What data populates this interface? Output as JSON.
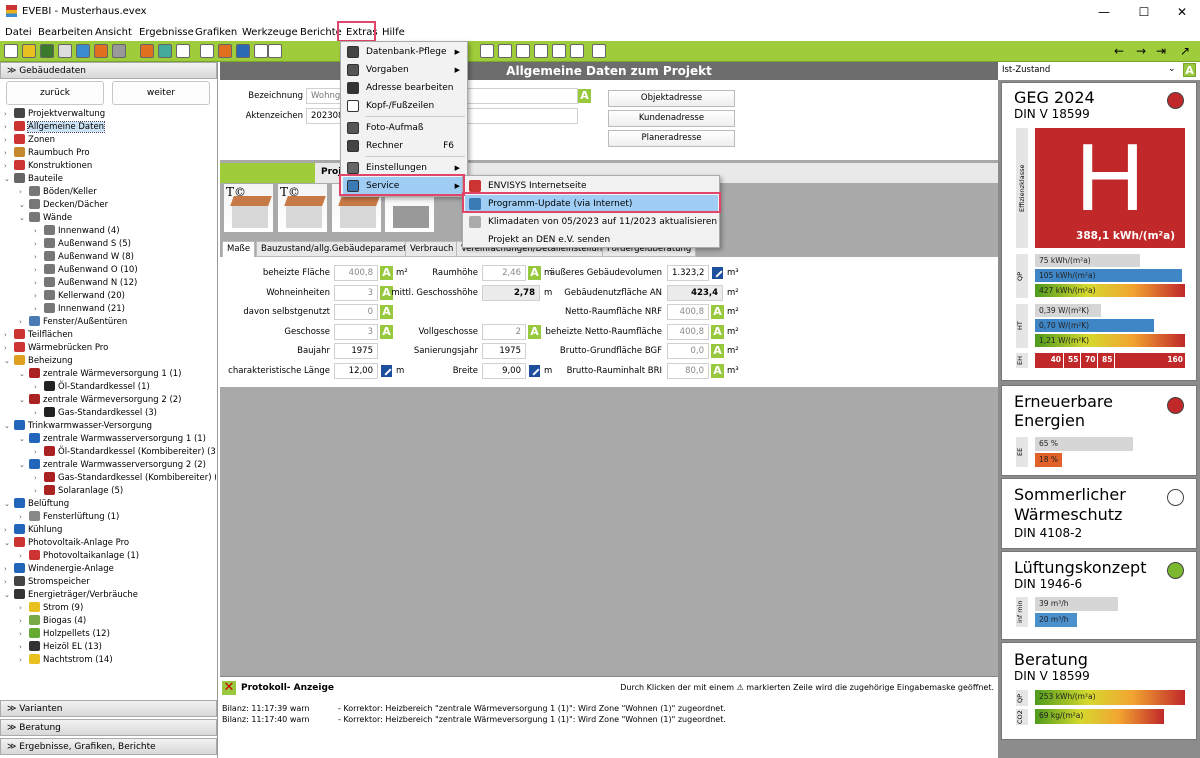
{
  "window": {
    "title": "EVEBI - Musterhaus.evex",
    "min": "—",
    "max": "☐",
    "close": "✕"
  },
  "menubar": [
    "Datei",
    "Bearbeiten",
    "Ansicht",
    "Ergebnisse",
    "Grafiken",
    "Werkzeuge",
    "Berichte",
    "Extras",
    "Hilfe"
  ],
  "left": {
    "header": "Gebäudedaten",
    "back": "zurück",
    "next": "weiter",
    "tree": [
      {
        "l": 0,
        "t": "Projektverwaltung",
        "c": "#444"
      },
      {
        "l": 0,
        "t": "Allgemeine Daten",
        "c": "#c33",
        "sel": true
      },
      {
        "l": 0,
        "t": "Zonen",
        "c": "#c33"
      },
      {
        "l": 0,
        "t": "Raumbuch Pro",
        "c": "#c58a2e"
      },
      {
        "l": 0,
        "t": "Konstruktionen",
        "c": "#c33"
      },
      {
        "l": 0,
        "t": "Bauteile",
        "c": "#666"
      },
      {
        "l": 1,
        "t": "Böden/Keller",
        "c": "#777"
      },
      {
        "l": 1,
        "t": "Decken/Dächer",
        "c": "#777"
      },
      {
        "l": 1,
        "t": "Wände",
        "c": "#777"
      },
      {
        "l": 2,
        "t": "Innenwand (4)",
        "c": "#777"
      },
      {
        "l": 2,
        "t": "Außenwand S (5)",
        "c": "#777"
      },
      {
        "l": 2,
        "t": "Außenwand W (8)",
        "c": "#777"
      },
      {
        "l": 2,
        "t": "Außenwand O (10)",
        "c": "#777"
      },
      {
        "l": 2,
        "t": "Außenwand N (12)",
        "c": "#777"
      },
      {
        "l": 2,
        "t": "Kellerwand (20)",
        "c": "#777"
      },
      {
        "l": 2,
        "t": "Innenwand (21)",
        "c": "#777"
      },
      {
        "l": 1,
        "t": "Fenster/Außentüren",
        "c": "#4a7ab5"
      },
      {
        "l": 0,
        "t": "Teilflächen",
        "c": "#c33"
      },
      {
        "l": 0,
        "t": "Wärmebrücken Pro",
        "c": "#c33"
      },
      {
        "l": 0,
        "t": "Beheizung",
        "c": "#e0a020"
      },
      {
        "l": 1,
        "t": "zentrale Wärmeversorgung 1 (1)",
        "c": "#a22"
      },
      {
        "l": 2,
        "t": "Öl-Standardkessel (1)",
        "c": "#222"
      },
      {
        "l": 1,
        "t": "zentrale Wärmeversorgung 2 (2)",
        "c": "#a22"
      },
      {
        "l": 2,
        "t": "Gas-Standardkessel (3)",
        "c": "#222"
      },
      {
        "l": 0,
        "t": "Trinkwarmwasser-Versorgung",
        "c": "#2266bb"
      },
      {
        "l": 1,
        "t": "zentrale Warmwasserversorgung 1 (1)",
        "c": "#2266bb"
      },
      {
        "l": 2,
        "t": "Öl-Standardkessel (Kombibereiter) (3)",
        "c": "#a22"
      },
      {
        "l": 1,
        "t": "zentrale Warmwasserversorgung 2 (2)",
        "c": "#2266bb"
      },
      {
        "l": 2,
        "t": "Gas-Standardkessel (Kombibereiter) (4)",
        "c": "#a22"
      },
      {
        "l": 2,
        "t": "Solaranlage (5)",
        "c": "#a22"
      },
      {
        "l": 0,
        "t": "Belüftung",
        "c": "#2266bb"
      },
      {
        "l": 1,
        "t": "Fensterlüftung (1)",
        "c": "#888"
      },
      {
        "l": 0,
        "t": "Kühlung",
        "c": "#2266bb"
      },
      {
        "l": 0,
        "t": "Photovoltaik-Anlage Pro",
        "c": "#c33"
      },
      {
        "l": 1,
        "t": "Photovoltaikanlage (1)",
        "c": "#c33"
      },
      {
        "l": 0,
        "t": "Windenergie-Anlage",
        "c": "#2266bb"
      },
      {
        "l": 0,
        "t": "Stromspeicher",
        "c": "#444"
      },
      {
        "l": 0,
        "t": "Energieträger/Verbräuche",
        "c": "#333"
      },
      {
        "l": 1,
        "t": "Strom (9)",
        "c": "#e8c020"
      },
      {
        "l": 1,
        "t": "Biogas (4)",
        "c": "#7a4"
      },
      {
        "l": 1,
        "t": "Holzpellets (12)",
        "c": "#6a3"
      },
      {
        "l": 1,
        "t": "Heizöl EL (13)",
        "c": "#333"
      },
      {
        "l": 1,
        "t": "Nachtstrom (14)",
        "c": "#e8c020"
      }
    ],
    "sections": [
      "Varianten",
      "Beratung",
      "Ergebnisse, Grafiken, Berichte"
    ]
  },
  "center": {
    "title": "Allgemeine Daten zum Projekt",
    "bezeichnung_label": "Bezeichnung",
    "bezeichnung_value": "Wohngebäude",
    "aktenzeichen_label": "Aktenzeichen",
    "aktenzeichen_value": "202308",
    "buttons": [
      "Objektadresse",
      "Kundenadresse",
      "Planeradresse"
    ],
    "subtoolbar_label": "Projekt",
    "tabs": [
      "Maße",
      "Bauzustand/allg.Gebäudeparameter",
      "Verbrauch",
      "Vereinfachungen/Detaileinstellungen",
      "Fördergeldberatung"
    ],
    "fields": [
      [
        {
          "label": "beheizte Fläche",
          "value": "400,8",
          "badge": "A",
          "unit": "m²",
          "grey": true
        },
        {
          "label": "Raumhöhe",
          "value": "2,46",
          "badge": "A",
          "unit": "m",
          "grey": true
        },
        {
          "label": "äußeres Gebäudevolumen",
          "value": "1.323,2",
          "badge": "P",
          "unit": "m³"
        }
      ],
      [
        {
          "label": "Wohneinheiten",
          "value": "3",
          "badge": "A",
          "unit": "",
          "grey": true
        },
        {
          "label": "mittl. Geschosshöhe",
          "value": "2,78",
          "badge": "",
          "unit": "m",
          "bold": true
        },
        {
          "label": "Gebäudenutzfläche AN",
          "value": "423,4",
          "badge": "",
          "unit": "m²",
          "bold": true
        }
      ],
      [
        {
          "label": "davon selbstgenutzt",
          "value": "0",
          "badge": "A",
          "unit": "",
          "grey": true
        },
        null,
        {
          "label": "Netto-Raumfläche NRF",
          "value": "400,8",
          "badge": "A",
          "unit": "m²",
          "grey": true
        }
      ],
      [
        {
          "label": "Geschosse",
          "value": "3",
          "badge": "A",
          "unit": "",
          "grey": true
        },
        {
          "label": "Vollgeschosse",
          "value": "2",
          "badge": "A",
          "unit": "",
          "grey": true
        },
        {
          "label": "beheizte Netto-Raumfläche",
          "value": "400,8",
          "badge": "A",
          "unit": "m²",
          "grey": true
        }
      ],
      [
        {
          "label": "Baujahr",
          "value": "1975",
          "badge": "",
          "unit": ""
        },
        {
          "label": "Sanierungsjahr",
          "value": "1975",
          "badge": "",
          "unit": ""
        },
        {
          "label": "Brutto-Grundfläche BGF",
          "value": "0,0",
          "badge": "A",
          "unit": "m²",
          "grey": true
        }
      ],
      [
        {
          "label": "charakteristische Länge",
          "value": "12,00",
          "badge": "P",
          "unit": "m"
        },
        {
          "label": "Breite",
          "value": "9,00",
          "badge": "P",
          "unit": "m"
        },
        {
          "label": "Brutto-Rauminhalt BRI",
          "value": "80,0",
          "badge": "A",
          "unit": "m³",
          "grey": true
        }
      ]
    ]
  },
  "menu": {
    "items": [
      {
        "t": "Datenbank-Pflege",
        "sub": true
      },
      {
        "t": "Vorgaben",
        "sub": true
      },
      {
        "t": "Adresse bearbeiten"
      },
      {
        "t": "Kopf-/Fußzeilen"
      },
      {
        "t": "Foto-Aufmaß"
      },
      {
        "t": "Rechner",
        "k": "F6"
      },
      {
        "t": "Einstellungen",
        "sub": true
      },
      {
        "t": "Service",
        "sub": true,
        "hl": true
      }
    ],
    "submenu": [
      "ENVISYS Internetseite",
      "Programm-Update (via Internet)",
      "Klimadaten von 05/2023 auf 11/2023 aktualisieren",
      "Projekt an DEN e.V. senden"
    ]
  },
  "protokoll": {
    "title": "Protokoll- Anzeige",
    "hint": "Durch Klicken der mit einem ⚠ markierten Zeile wird die zugehörige Eingabemaske geöffnet.",
    "rows": [
      {
        "src": "Bilanz: 11:17:39 warn",
        "msg": "-  Korrektor: Heizbereich \"zentrale Wärmeversorgung 1 (1)\": Wird Zone \"Wohnen (1)\" zugeordnet."
      },
      {
        "src": "Bilanz: 11:17:40 warn",
        "msg": "-  Korrektor: Heizbereich \"zentrale Wärmeversorgung 1 (1)\": Wird Zone \"Wohnen (1)\" zugeordnet."
      }
    ]
  },
  "right": {
    "variant": "Ist-Zustand",
    "variant_badge": "A",
    "geg": {
      "title": "GEG 2024",
      "sub": "DIN V 18599",
      "status": "#c0282a",
      "class": "H",
      "class_label": "Effizienzklasse",
      "value": "388,1 kWh/(m²a)",
      "qp_label": "QP",
      "qp": [
        {
          "t": "75 kWh/(m²a)",
          "pct": 70,
          "c": "#d6d6d6"
        },
        {
          "t": "105 kWh/(m²a)",
          "pct": 98,
          "c": "#3f86c6"
        },
        {
          "t": "427 kWh/(m²a)",
          "pct": 100,
          "c": "grad"
        }
      ],
      "ht_label": "HT",
      "ht": [
        {
          "t": "0,39 W/(m²K)",
          "pct": 44,
          "c": "#d6d6d6"
        },
        {
          "t": "0,70 W/(m²K)",
          "pct": 79,
          "c": "#3f86c6"
        },
        {
          "t": "1,21 W/(m²K)",
          "pct": 100,
          "c": "grad"
        }
      ],
      "eh_label": "EH",
      "eh": [
        "40",
        "55",
        "70",
        "85",
        "160"
      ]
    },
    "ee": {
      "title1": "Erneuerbare",
      "title2": "Energien",
      "status": "#c0282a",
      "label": "EE",
      "bars": [
        {
          "t": "65 %",
          "pct": 65,
          "c": "#d6d6d6"
        },
        {
          "t": "18 %",
          "pct": 18,
          "c": "#e0622a"
        }
      ]
    },
    "sw": {
      "title1": "Sommerlicher",
      "title2": "Wärmeschutz",
      "sub": "DIN 4108-2",
      "status": "#ffffff"
    },
    "lk": {
      "title": "Lüftungskonzept",
      "sub": "DIN 1946-6",
      "status": "#7cb82f",
      "label": "inf min",
      "bars": [
        {
          "t": "39 m³/h",
          "pct": 55,
          "c": "#d6d6d6"
        },
        {
          "t": "20 m³/h",
          "pct": 28,
          "c": "#4a90cc"
        }
      ]
    },
    "be": {
      "title": "Beratung",
      "sub": "DIN V 18599",
      "qp_label": "QP",
      "co2_label": "CO2",
      "bars": [
        {
          "t": "253 kWh/(m²a)",
          "pct": 100
        },
        {
          "t": "69 kg/(m²a)",
          "pct": 86
        }
      ]
    }
  }
}
